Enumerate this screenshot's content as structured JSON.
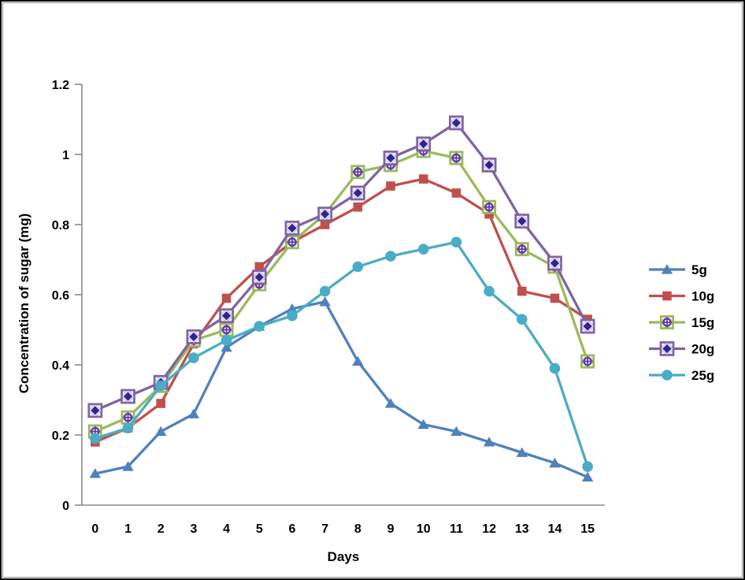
{
  "window": {
    "background": "#FFFFFF",
    "outer_border_color": "#000000",
    "inner_border_color": "#8A8A8A",
    "axis_color": "#8C8C8C"
  },
  "chart_data": {
    "type": "line",
    "title": "",
    "xlabel": "Days",
    "ylabel": "Concentration of sugar (mg)",
    "x": [
      0,
      1,
      2,
      3,
      4,
      5,
      6,
      7,
      8,
      9,
      10,
      11,
      12,
      13,
      14,
      15
    ],
    "xtick_labels": [
      "0",
      "1",
      "2",
      "3",
      "4",
      "5",
      "6",
      "7",
      "8",
      "9",
      "10",
      "11",
      "12",
      "13",
      "14",
      "15"
    ],
    "ylim": [
      0,
      1.2
    ],
    "yticks": [
      0,
      0.2,
      0.4,
      0.6,
      0.8,
      1,
      1.2
    ],
    "ytick_labels": [
      "0",
      "0.2",
      "0.4",
      "0.6",
      "0.8",
      "1",
      "1.2"
    ],
    "grid": false,
    "legend_position": "right",
    "series": [
      {
        "name": "5g",
        "color": "#4F81BD",
        "marker": "triangle",
        "values": [
          0.09,
          0.11,
          0.21,
          0.26,
          0.45,
          0.51,
          0.56,
          0.58,
          0.41,
          0.29,
          0.23,
          0.21,
          0.18,
          0.15,
          0.12,
          0.08
        ]
      },
      {
        "name": "10g",
        "color": "#C0504D",
        "marker": "square",
        "values": [
          0.18,
          0.22,
          0.29,
          0.46,
          0.59,
          0.68,
          0.75,
          0.8,
          0.85,
          0.91,
          0.93,
          0.89,
          0.83,
          0.61,
          0.59,
          0.53
        ]
      },
      {
        "name": "15g",
        "color": "#9BBB59",
        "marker": "boxed-circle-cross",
        "marker_inner_color": "#5F3D9E",
        "values": [
          0.21,
          0.25,
          0.34,
          0.47,
          0.5,
          0.63,
          0.75,
          0.83,
          0.95,
          0.97,
          1.01,
          0.99,
          0.85,
          0.73,
          0.68,
          0.41
        ]
      },
      {
        "name": "20g",
        "color": "#8064A2",
        "marker": "boxed-diamond",
        "marker_inner_color": "#2F2492",
        "values": [
          0.27,
          0.31,
          0.35,
          0.48,
          0.54,
          0.65,
          0.79,
          0.83,
          0.89,
          0.99,
          1.03,
          1.09,
          0.97,
          0.81,
          0.69,
          0.51
        ]
      },
      {
        "name": "25g",
        "color": "#4BACC6",
        "marker": "circle",
        "values": [
          0.19,
          0.22,
          0.34,
          0.42,
          0.47,
          0.51,
          0.54,
          0.61,
          0.68,
          0.71,
          0.73,
          0.75,
          0.61,
          0.53,
          0.39,
          0.11
        ]
      }
    ]
  }
}
